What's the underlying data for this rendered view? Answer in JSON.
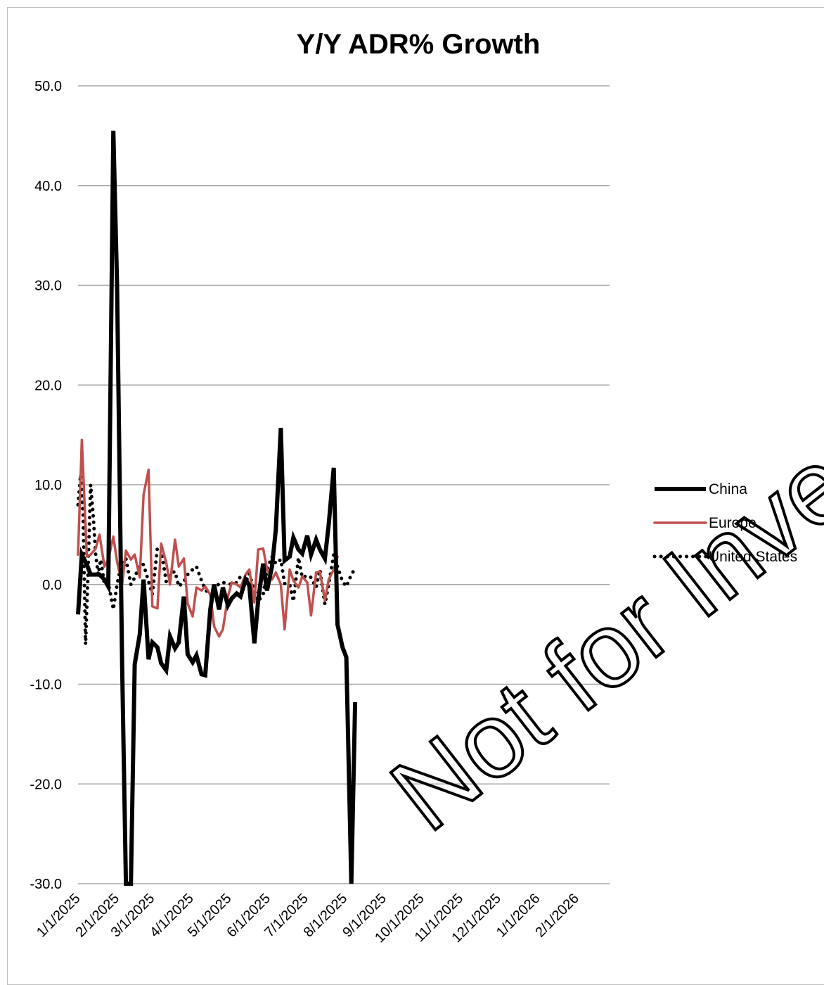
{
  "chart_data": {
    "type": "line",
    "title": "Y/Y ADR% Growth",
    "xlabel": "",
    "ylabel": "",
    "ylim": [
      -30,
      50
    ],
    "yticks": [
      {
        "value": 50,
        "label": "50.0"
      },
      {
        "value": 40,
        "label": "40.0"
      },
      {
        "value": 30,
        "label": "30.0"
      },
      {
        "value": 20,
        "label": "20.0"
      },
      {
        "value": 10,
        "label": "10.0"
      },
      {
        "value": 0,
        "label": "0.0"
      },
      {
        "value": -10,
        "label": "-10.0"
      },
      {
        "value": -20,
        "label": "-20.0"
      },
      {
        "value": -30,
        "label": "-30.0"
      }
    ],
    "xticks": [
      "1/1/2025",
      "2/1/2025",
      "3/1/2025",
      "4/1/2025",
      "5/1/2025",
      "6/1/2025",
      "7/1/2025",
      "8/1/2025",
      "9/1/2025",
      "10/1/2025",
      "11/1/2025",
      "12/1/2025",
      "1/1/2026",
      "2/1/2026"
    ],
    "xlim": [
      "1/1/2025",
      "2/27/2026"
    ],
    "grid": true,
    "legend_position": "right",
    "series": [
      {
        "name": "China",
        "color": "#000000",
        "style": "thick-solid",
        "points": [
          [
            "1/1/2025",
            -3.0
          ],
          [
            "1/4/2025",
            3.0
          ],
          [
            "1/8/2025",
            2.0
          ],
          [
            "1/11/2025",
            1.0
          ],
          [
            "1/15/2025",
            1.0
          ],
          [
            "1/18/2025",
            1.0
          ],
          [
            "1/22/2025",
            0.5
          ],
          [
            "1/25/2025",
            -0.2
          ],
          [
            "1/29/2025",
            45.5
          ],
          [
            "2/1/2025",
            30.0
          ],
          [
            "2/5/2025",
            -8.0
          ],
          [
            "2/8/2025",
            -30.0
          ],
          [
            "2/12/2025",
            -30.0
          ],
          [
            "2/15/2025",
            -8.0
          ],
          [
            "2/19/2025",
            -5.0
          ],
          [
            "2/22/2025",
            0.5
          ],
          [
            "2/26/2025",
            -7.5
          ],
          [
            "3/1/2025",
            -5.8
          ],
          [
            "3/5/2025",
            -6.3
          ],
          [
            "3/8/2025",
            -7.9
          ],
          [
            "3/12/2025",
            -8.6
          ],
          [
            "3/15/2025",
            -5.2
          ],
          [
            "3/19/2025",
            -6.4
          ],
          [
            "3/22/2025",
            -5.8
          ],
          [
            "3/26/2025",
            -1.2
          ],
          [
            "3/29/2025",
            -7.0
          ],
          [
            "4/2/2025",
            -7.8
          ],
          [
            "4/5/2025",
            -7.1
          ],
          [
            "4/9/2025",
            -9.0
          ],
          [
            "4/12/2025",
            -9.1
          ],
          [
            "4/16/2025",
            -2.5
          ],
          [
            "4/19/2025",
            0.0
          ],
          [
            "4/23/2025",
            -2.5
          ],
          [
            "4/26/2025",
            -0.3
          ],
          [
            "4/30/2025",
            -2.1
          ],
          [
            "5/3/2025",
            -1.4
          ],
          [
            "5/7/2025",
            -0.9
          ],
          [
            "5/10/2025",
            -1.2
          ],
          [
            "5/14/2025",
            0.5
          ],
          [
            "5/17/2025",
            -0.1
          ],
          [
            "5/21/2025",
            -5.9
          ],
          [
            "5/24/2025",
            -1.6
          ],
          [
            "5/28/2025",
            2.1
          ],
          [
            "5/31/2025",
            -0.6
          ],
          [
            "6/4/2025",
            1.8
          ],
          [
            "6/7/2025",
            5.5
          ],
          [
            "6/11/2025",
            15.7
          ],
          [
            "6/14/2025",
            2.4
          ],
          [
            "6/18/2025",
            2.8
          ],
          [
            "6/21/2025",
            4.7
          ],
          [
            "6/25/2025",
            3.5
          ],
          [
            "6/28/2025",
            3.1
          ],
          [
            "7/2/2025",
            4.9
          ],
          [
            "7/5/2025",
            3.0
          ],
          [
            "7/9/2025",
            4.5
          ],
          [
            "7/12/2025",
            3.5
          ],
          [
            "7/16/2025",
            2.6
          ],
          [
            "7/19/2025",
            6.0
          ],
          [
            "7/23/2025",
            11.7
          ],
          [
            "7/26/2025",
            -4.0
          ],
          [
            "7/30/2025",
            -6.3
          ],
          [
            "8/2/2025",
            -7.3
          ],
          [
            "8/6/2025",
            -30.0
          ],
          [
            "8/9/2025",
            -11.8
          ]
        ]
      },
      {
        "name": "Europe",
        "color": "#c0504d",
        "style": "solid",
        "points": [
          [
            "1/1/2025",
            3.0
          ],
          [
            "1/4/2025",
            14.5
          ],
          [
            "1/8/2025",
            2.8
          ],
          [
            "1/11/2025",
            3.0
          ],
          [
            "1/15/2025",
            3.6
          ],
          [
            "1/18/2025",
            5.0
          ],
          [
            "1/22/2025",
            1.8
          ],
          [
            "1/25/2025",
            2.5
          ],
          [
            "1/29/2025",
            4.8
          ],
          [
            "2/1/2025",
            2.3
          ],
          [
            "2/5/2025",
            0.0
          ],
          [
            "2/8/2025",
            3.4
          ],
          [
            "2/12/2025",
            2.5
          ],
          [
            "2/15/2025",
            3.0
          ],
          [
            "2/19/2025",
            0.7
          ],
          [
            "2/22/2025",
            9.0
          ],
          [
            "2/26/2025",
            11.5
          ],
          [
            "3/1/2025",
            -2.2
          ],
          [
            "3/5/2025",
            -2.4
          ],
          [
            "3/8/2025",
            4.1
          ],
          [
            "3/12/2025",
            2.2
          ],
          [
            "3/15/2025",
            0.0
          ],
          [
            "3/19/2025",
            4.5
          ],
          [
            "3/22/2025",
            1.8
          ],
          [
            "3/26/2025",
            2.6
          ],
          [
            "3/29/2025",
            -1.9
          ],
          [
            "4/2/2025",
            -3.2
          ],
          [
            "4/5/2025",
            -0.3
          ],
          [
            "4/9/2025",
            -0.6
          ],
          [
            "4/12/2025",
            -0.2
          ],
          [
            "4/16/2025",
            -1.0
          ],
          [
            "4/19/2025",
            -4.2
          ],
          [
            "4/23/2025",
            -5.2
          ],
          [
            "4/26/2025",
            -4.5
          ],
          [
            "4/30/2025",
            -1.2
          ],
          [
            "5/3/2025",
            0.2
          ],
          [
            "5/7/2025",
            0.0
          ],
          [
            "5/10/2025",
            -0.3
          ],
          [
            "5/14/2025",
            1.0
          ],
          [
            "5/17/2025",
            1.5
          ],
          [
            "5/21/2025",
            -1.8
          ],
          [
            "5/24/2025",
            3.5
          ],
          [
            "5/28/2025",
            3.6
          ],
          [
            "5/31/2025",
            1.6
          ],
          [
            "6/4/2025",
            0.5
          ],
          [
            "6/7/2025",
            1.2
          ],
          [
            "6/11/2025",
            0.0
          ],
          [
            "6/14/2025",
            -4.5
          ],
          [
            "6/18/2025",
            1.5
          ],
          [
            "6/21/2025",
            0.4
          ],
          [
            "6/25/2025",
            -0.3
          ],
          [
            "6/28/2025",
            0.8
          ],
          [
            "7/2/2025",
            0.2
          ],
          [
            "7/5/2025",
            -3.1
          ],
          [
            "7/9/2025",
            1.2
          ],
          [
            "7/12/2025",
            1.3
          ],
          [
            "7/16/2025",
            -1.6
          ],
          [
            "7/19/2025",
            0.5
          ],
          [
            "7/23/2025",
            1.5
          ],
          [
            "7/26/2025",
            2.8
          ]
        ]
      },
      {
        "name": "United States",
        "color": "#000000",
        "style": "dotted",
        "points": [
          [
            "1/1/2025",
            8.0
          ],
          [
            "1/3/2025",
            11.0
          ],
          [
            "1/5/2025",
            7.0
          ],
          [
            "1/7/2025",
            -6.0
          ],
          [
            "1/9/2025",
            1.5
          ],
          [
            "1/11/2025",
            10.0
          ],
          [
            "1/13/2025",
            7.0
          ],
          [
            "1/15/2025",
            3.0
          ],
          [
            "1/17/2025",
            1.0
          ],
          [
            "1/19/2025",
            2.5
          ],
          [
            "1/22/2025",
            0.0
          ],
          [
            "1/25/2025",
            0.2
          ],
          [
            "1/29/2025",
            -2.5
          ],
          [
            "2/1/2025",
            0.0
          ],
          [
            "2/5/2025",
            2.4
          ],
          [
            "2/8/2025",
            2.6
          ],
          [
            "2/12/2025",
            0.0
          ],
          [
            "2/15/2025",
            0.7
          ],
          [
            "2/19/2025",
            2.0
          ],
          [
            "2/22/2025",
            2.0
          ],
          [
            "2/26/2025",
            0.3
          ],
          [
            "3/1/2025",
            -1.0
          ],
          [
            "3/5/2025",
            3.7
          ],
          [
            "3/8/2025",
            3.5
          ],
          [
            "3/12/2025",
            0.3
          ],
          [
            "3/15/2025",
            1.1
          ],
          [
            "3/19/2025",
            1.3
          ],
          [
            "3/22/2025",
            -0.2
          ],
          [
            "3/26/2025",
            0.3
          ],
          [
            "3/29/2025",
            1.0
          ],
          [
            "4/2/2025",
            1.5
          ],
          [
            "4/5/2025",
            1.8
          ],
          [
            "4/9/2025",
            0.4
          ],
          [
            "4/12/2025",
            -0.5
          ],
          [
            "4/16/2025",
            -1.1
          ],
          [
            "4/19/2025",
            -0.6
          ],
          [
            "4/23/2025",
            0.1
          ],
          [
            "4/26/2025",
            0.2
          ],
          [
            "4/30/2025",
            0.1
          ],
          [
            "5/3/2025",
            0.0
          ],
          [
            "5/7/2025",
            0.2
          ],
          [
            "5/10/2025",
            0.8
          ],
          [
            "5/14/2025",
            0.2
          ],
          [
            "5/17/2025",
            1.1
          ],
          [
            "5/21/2025",
            -0.6
          ],
          [
            "5/24/2025",
            -1.7
          ],
          [
            "5/28/2025",
            -1.0
          ],
          [
            "5/31/2025",
            1.5
          ],
          [
            "6/4/2025",
            2.8
          ],
          [
            "6/7/2025",
            2.1
          ],
          [
            "6/11/2025",
            2.5
          ],
          [
            "6/14/2025",
            0.1
          ],
          [
            "6/18/2025",
            0.0
          ],
          [
            "6/21/2025",
            -1.7
          ],
          [
            "6/25/2025",
            2.7
          ],
          [
            "6/28/2025",
            0.7
          ],
          [
            "7/2/2025",
            0.9
          ],
          [
            "7/5/2025",
            0.7
          ],
          [
            "7/9/2025",
            -0.3
          ],
          [
            "7/12/2025",
            1.5
          ],
          [
            "7/16/2025",
            -2.0
          ],
          [
            "7/19/2025",
            0.0
          ],
          [
            "7/23/2025",
            3.0
          ],
          [
            "7/26/2025",
            1.8
          ],
          [
            "7/30/2025",
            0.3
          ],
          [
            "8/2/2025",
            -0.2
          ],
          [
            "8/6/2025",
            1.0
          ],
          [
            "8/9/2025",
            1.6
          ]
        ]
      }
    ]
  },
  "watermark": "Not for Investment Purposes"
}
